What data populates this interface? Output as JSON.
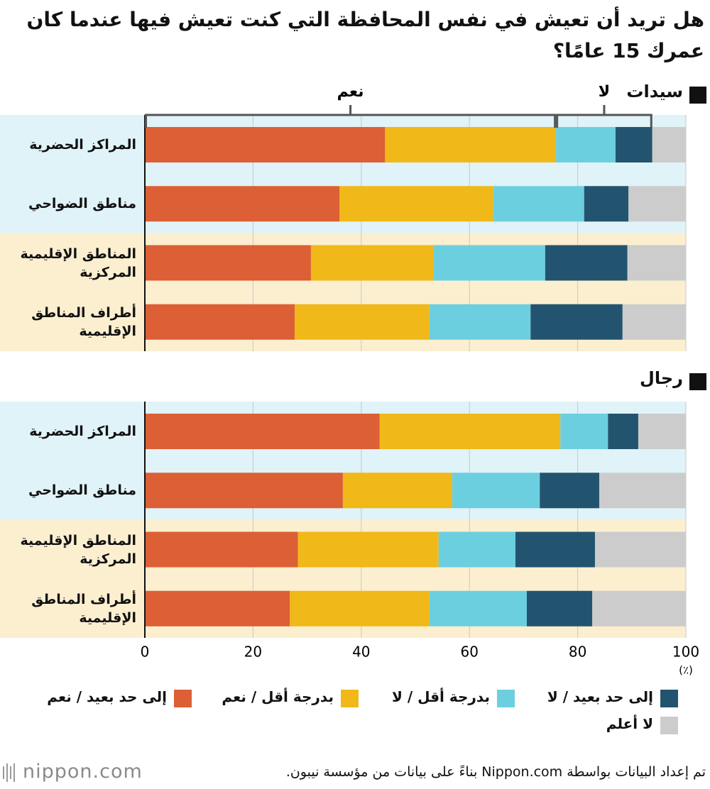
{
  "chart_data": {
    "type": "bar",
    "orientation": "horizontal",
    "stacked": true,
    "title": "هل تريد أن تعيش في نفس المحافظة التي كنت تعيش فيها عندما كان عمرك 15 عامًا؟",
    "panels": [
      {
        "title": "سيدات"
      },
      {
        "title": "رجال"
      }
    ],
    "categories": [
      "المراكز الحضرية",
      "مناطق الضواحي",
      "المناطق الإقليمية المركزية",
      "أطراف المناطق الإقليمية",
      "المراكز الحضرية",
      "مناطق الضواحي",
      "المناطق الإقليمية المركزية",
      "أطراف المناطق الإقليمية"
    ],
    "series": [
      {
        "name": "إلى حد بعيد / نعم",
        "color": "#dc5f35",
        "values": [
          44.4,
          36.0,
          30.7,
          27.7,
          43.4,
          36.6,
          28.3,
          26.8
        ]
      },
      {
        "name": "بدرجة أقل / نعم",
        "color": "#f0b818",
        "values": [
          31.6,
          28.4,
          22.6,
          24.9,
          33.4,
          20.2,
          26.0,
          25.8
        ]
      },
      {
        "name": "بدرجة أقل / لا",
        "color": "#6ccfe0",
        "values": [
          11.0,
          16.8,
          20.7,
          18.7,
          8.8,
          16.2,
          14.2,
          18.0
        ]
      },
      {
        "name": "إلى حد بعيد / لا",
        "color": "#23546f",
        "values": [
          6.8,
          8.2,
          15.2,
          17.0,
          5.6,
          11.0,
          14.7,
          12.1
        ]
      },
      {
        "name": "لا أعلم",
        "color": "#cccccc",
        "values": [
          6.2,
          10.6,
          10.8,
          11.7,
          8.8,
          16.0,
          16.8,
          17.3
        ]
      }
    ],
    "annotations": [
      {
        "text": "نعم"
      },
      {
        "text": "لا"
      }
    ],
    "xlim": [
      0,
      100
    ],
    "xticks": [
      0,
      20,
      40,
      60,
      80,
      100
    ],
    "x_unit": "(٪)",
    "grid": true,
    "source": "تم إعداد البيانات بواسطة Nippon.com بناءً على بيانات من مؤسسة نيبون.",
    "logo": "nippon.com"
  }
}
